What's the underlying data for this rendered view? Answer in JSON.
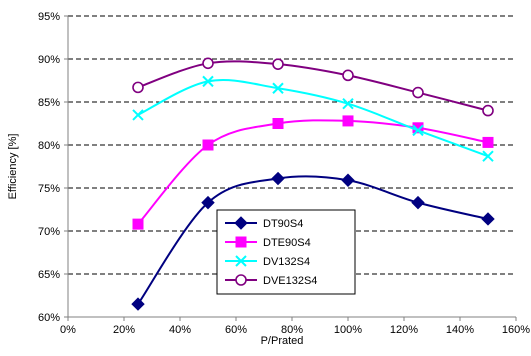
{
  "chart_data": {
    "type": "line",
    "xlabel": "P/Prated",
    "ylabel": "Efficiency [%]",
    "xlim": [
      0,
      160
    ],
    "ylim": [
      60,
      95
    ],
    "x_ticks": [
      0,
      20,
      40,
      60,
      80,
      100,
      120,
      140,
      160
    ],
    "x_tick_labels": [
      "0%",
      "20%",
      "40%",
      "60%",
      "80%",
      "100%",
      "120%",
      "140%",
      "160%"
    ],
    "y_ticks": [
      60,
      65,
      70,
      75,
      80,
      85,
      90,
      95
    ],
    "y_tick_labels": [
      "60%",
      "65%",
      "70%",
      "75%",
      "80%",
      "85%",
      "90%",
      "95%"
    ],
    "grid": "horizontal dashed",
    "legend_position": "lower-center",
    "smooth": true,
    "x": [
      25,
      50,
      75,
      100,
      125,
      150
    ],
    "series": [
      {
        "name": "DT90S4",
        "color": "#000080",
        "marker": "diamond",
        "values": [
          61.5,
          73.3,
          76.1,
          75.9,
          73.3,
          71.4
        ]
      },
      {
        "name": "DTE90S4",
        "color": "#ff00ff",
        "marker": "square",
        "values": [
          70.8,
          80.0,
          82.5,
          82.8,
          82.0,
          80.3
        ]
      },
      {
        "name": "DV132S4",
        "color": "#00ffff",
        "marker": "x",
        "values": [
          83.5,
          87.4,
          86.6,
          84.8,
          81.7,
          78.7
        ]
      },
      {
        "name": "DVE132S4",
        "color": "#800080",
        "marker": "circle",
        "values": [
          86.7,
          89.5,
          89.4,
          88.1,
          86.1,
          84.0
        ]
      }
    ]
  }
}
